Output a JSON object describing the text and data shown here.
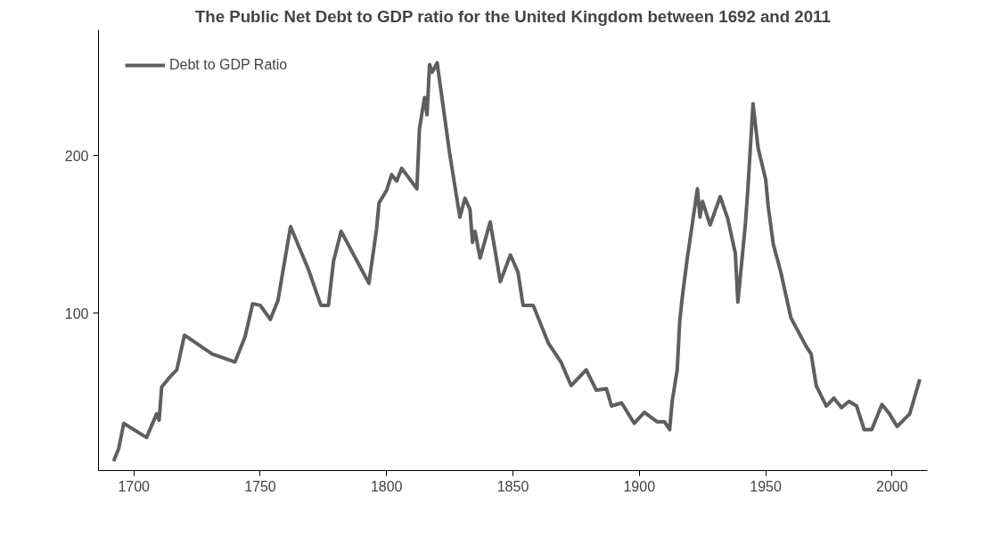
{
  "chart_data": {
    "type": "line",
    "title": "The Public Net Debt to GDP ratio for the United Kingdom between 1692 and 2011",
    "xlim": [
      1686,
      2014
    ],
    "ylim": [
      0,
      280
    ],
    "xticks": [
      1700,
      1750,
      1800,
      1850,
      1900,
      1950,
      2000
    ],
    "yticks": [
      100,
      200
    ],
    "grid": false,
    "legend": "top left",
    "line_style": "solid",
    "series": [
      {
        "name": "Debt to GDP Ratio",
        "color": "#5f5f5f",
        "x": [
          1692,
          1694,
          1696,
          1705,
          1709,
          1710,
          1711,
          1714,
          1717,
          1720,
          1731,
          1740,
          1744,
          1747,
          1750,
          1754,
          1757,
          1762,
          1769,
          1774,
          1777,
          1779,
          1782,
          1793,
          1796,
          1797,
          1800,
          1802,
          1804,
          1806,
          1812,
          1813,
          1815,
          1816,
          1817,
          1818,
          1820,
          1825,
          1829,
          1831,
          1833,
          1834,
          1835,
          1837,
          1841,
          1845,
          1849,
          1852,
          1854,
          1858,
          1864,
          1869,
          1873,
          1879,
          1883,
          1887,
          1889,
          1893,
          1898,
          1902,
          1907,
          1910,
          1912,
          1913,
          1915,
          1916,
          1917,
          1919,
          1923,
          1924,
          1925,
          1928,
          1932,
          1935,
          1938,
          1939,
          1942,
          1943,
          1945,
          1947,
          1950,
          1951,
          1953,
          1956,
          1960,
          1966,
          1968,
          1970,
          1974,
          1977,
          1980,
          1983,
          1986,
          1989,
          1992,
          1996,
          1999,
          2002,
          2007,
          2011
        ],
        "values": [
          6,
          14,
          30,
          21,
          36,
          32,
          53,
          59,
          64,
          86,
          74,
          69,
          85,
          106,
          105,
          96,
          108,
          155,
          128,
          105,
          105,
          133,
          152,
          119,
          153,
          170,
          178,
          188,
          184,
          192,
          179,
          217,
          237,
          226,
          258,
          253,
          259,
          201,
          161,
          173,
          166,
          145,
          152,
          135,
          158,
          120,
          137,
          126,
          105,
          105,
          81,
          69,
          54,
          64,
          51,
          52,
          41,
          43,
          30,
          37,
          31,
          31,
          26,
          44,
          64,
          95,
          110,
          135,
          179,
          161,
          171,
          156,
          174,
          160,
          138,
          107,
          157,
          180,
          233,
          205,
          185,
          168,
          144,
          126,
          97,
          79,
          74,
          54,
          41,
          46,
          40,
          44,
          41,
          26,
          26,
          42,
          36,
          28,
          36,
          58
        ]
      }
    ]
  }
}
